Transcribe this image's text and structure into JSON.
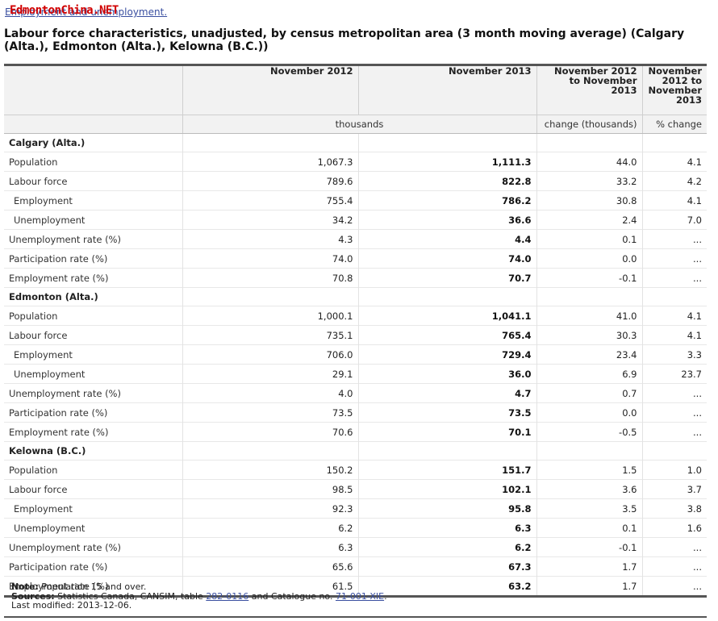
{
  "header": {
    "link_text": "Employment and unemployment.",
    "watermark": "EdmontonChina.NET"
  },
  "title": "Labour force characteristics, unadjusted, by census metropolitan area (3 month moving average) (Calgary (Alta.), Edmonton (Alta.), Kelowna (B.C.))",
  "table": {
    "columns": [
      "November 2012",
      "November 2013",
      "November 2012 to November 2013",
      "November 2012 to November 2013"
    ],
    "units": {
      "level": "thousands",
      "change": "change (thousands)",
      "pct": "% change"
    },
    "groups": [
      {
        "name": "Calgary (Alta.)",
        "rows": [
          {
            "label": "Population",
            "indent": false,
            "v2012": "1,067.3",
            "v2013": "1,111.3",
            "change": "44.0",
            "pct": "4.1"
          },
          {
            "label": "Labour force",
            "indent": false,
            "v2012": "789.6",
            "v2013": "822.8",
            "change": "33.2",
            "pct": "4.2"
          },
          {
            "label": "Employment",
            "indent": true,
            "v2012": "755.4",
            "v2013": "786.2",
            "change": "30.8",
            "pct": "4.1"
          },
          {
            "label": "Unemployment",
            "indent": true,
            "v2012": "34.2",
            "v2013": "36.6",
            "change": "2.4",
            "pct": "7.0"
          },
          {
            "label": "Unemployment rate (%)",
            "indent": false,
            "v2012": "4.3",
            "v2013": "4.4",
            "change": "0.1",
            "pct": "..."
          },
          {
            "label": "Participation rate (%)",
            "indent": false,
            "v2012": "74.0",
            "v2013": "74.0",
            "change": "0.0",
            "pct": "..."
          },
          {
            "label": "Employment rate (%)",
            "indent": false,
            "v2012": "70.8",
            "v2013": "70.7",
            "change": "-0.1",
            "pct": "..."
          }
        ]
      },
      {
        "name": "Edmonton (Alta.)",
        "rows": [
          {
            "label": "Population",
            "indent": false,
            "v2012": "1,000.1",
            "v2013": "1,041.1",
            "change": "41.0",
            "pct": "4.1"
          },
          {
            "label": "Labour force",
            "indent": false,
            "v2012": "735.1",
            "v2013": "765.4",
            "change": "30.3",
            "pct": "4.1"
          },
          {
            "label": "Employment",
            "indent": true,
            "v2012": "706.0",
            "v2013": "729.4",
            "change": "23.4",
            "pct": "3.3"
          },
          {
            "label": "Unemployment",
            "indent": true,
            "v2012": "29.1",
            "v2013": "36.0",
            "change": "6.9",
            "pct": "23.7"
          },
          {
            "label": "Unemployment rate (%)",
            "indent": false,
            "v2012": "4.0",
            "v2013": "4.7",
            "change": "0.7",
            "pct": "..."
          },
          {
            "label": "Participation rate (%)",
            "indent": false,
            "v2012": "73.5",
            "v2013": "73.5",
            "change": "0.0",
            "pct": "..."
          },
          {
            "label": "Employment rate (%)",
            "indent": false,
            "v2012": "70.6",
            "v2013": "70.1",
            "change": "-0.5",
            "pct": "..."
          }
        ]
      },
      {
        "name": "Kelowna (B.C.)",
        "rows": [
          {
            "label": "Population",
            "indent": false,
            "v2012": "150.2",
            "v2013": "151.7",
            "change": "1.5",
            "pct": "1.0"
          },
          {
            "label": "Labour force",
            "indent": false,
            "v2012": "98.5",
            "v2013": "102.1",
            "change": "3.6",
            "pct": "3.7"
          },
          {
            "label": "Employment",
            "indent": true,
            "v2012": "92.3",
            "v2013": "95.8",
            "change": "3.5",
            "pct": "3.8"
          },
          {
            "label": "Unemployment",
            "indent": true,
            "v2012": "6.2",
            "v2013": "6.3",
            "change": "0.1",
            "pct": "1.6"
          },
          {
            "label": "Unemployment rate (%)",
            "indent": false,
            "v2012": "6.3",
            "v2013": "6.2",
            "change": "-0.1",
            "pct": "..."
          },
          {
            "label": "Participation rate (%)",
            "indent": false,
            "v2012": "65.6",
            "v2013": "67.3",
            "change": "1.7",
            "pct": "..."
          },
          {
            "label": "Employment rate (%)",
            "indent": false,
            "v2012": "61.5",
            "v2013": "63.2",
            "change": "1.7",
            "pct": "..."
          }
        ]
      }
    ]
  },
  "footnote": {
    "note_label": "Note:",
    "note_text": "Population 15 and over.",
    "sources_label": "Sources:",
    "sources_text_1": "Statistics Canada, CANSIM, table",
    "sources_link_1": "282-0116",
    "sources_text_2": "and Catalogue no.",
    "sources_link_2": "71-001-XIE",
    "sources_text_3": ".",
    "modified": "Last modified: 2013-12-06."
  }
}
